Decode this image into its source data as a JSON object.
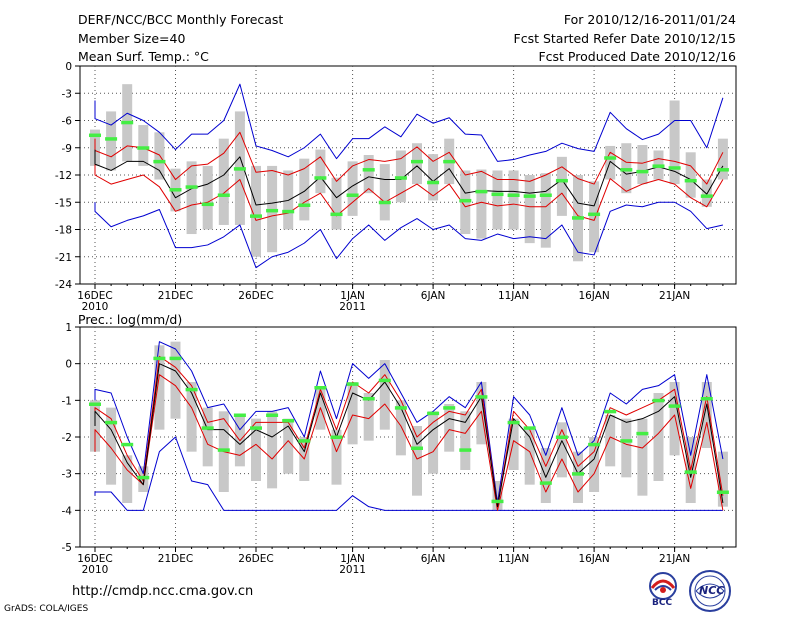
{
  "header": {
    "title": "DERF/NCC/BCC Monthly Forecast",
    "member_size": "Member Size=40",
    "variable": "Mean Surf. Temp.: °C",
    "period": "For 2010/12/16-2011/01/24",
    "started": "Fcst Started Refer Date 2010/12/15",
    "produced": "Fcst Produced Date 2010/12/16"
  },
  "footer": {
    "url": "http://cmdp.ncc.cma.gov.cn",
    "grads": "GrADS: COLA/IGES",
    "logo1_text": "BCC",
    "logo2_text": "NCC"
  },
  "colors": {
    "box": "#c8c8c8",
    "median": "#000000",
    "spread": "#e00000",
    "extreme": "#0000d0",
    "member": "#44ee44",
    "grid": "#555555"
  },
  "chart_data": [
    {
      "type": "line",
      "title": "Mean Surf. Temp.: °C",
      "xlabel": "",
      "ylabel": "",
      "ylim": [
        -24,
        0
      ],
      "yticks": [
        0,
        -3,
        -6,
        -9,
        -12,
        -15,
        -18,
        -21,
        -24
      ],
      "x_day_range": [
        0,
        39
      ],
      "grid": true,
      "xticks": [
        {
          "day": 0,
          "label": "16DEC",
          "sub": "2010"
        },
        {
          "day": 5,
          "label": "21DEC",
          "sub": ""
        },
        {
          "day": 10,
          "label": "26DEC",
          "sub": ""
        },
        {
          "day": 16,
          "label": "1JAN",
          "sub": "2011"
        },
        {
          "day": 21,
          "label": "6JAN",
          "sub": ""
        },
        {
          "day": 26,
          "label": "11JAN",
          "sub": ""
        },
        {
          "day": 31,
          "label": "16JAN",
          "sub": ""
        },
        {
          "day": 36,
          "label": "21JAN",
          "sub": ""
        }
      ],
      "series": [
        {
          "name": "max",
          "values": [
            -3.8,
            -5.8,
            -6.5,
            -5.2,
            -6.0,
            -7.3,
            -9.2,
            -7.5,
            -7.5,
            -6.0,
            -2.0,
            -8.8,
            -9.3,
            -10.0,
            -9.0,
            -7.5,
            -10.2,
            -8.0,
            -8.0,
            -6.7,
            -7.8,
            -5.3,
            -6.3,
            -5.7,
            -7.5,
            -7.6,
            -10.5,
            -10.3,
            -9.8,
            -9.4,
            -8.5,
            -9.1,
            -9.4,
            -5.1,
            -6.9,
            -8.1,
            -7.5,
            -6.0,
            -6.0,
            -9.0,
            -3.5
          ]
        },
        {
          "name": "upper",
          "values": [
            -8.0,
            -9.3,
            -10.0,
            -8.8,
            -9.0,
            -9.8,
            -12.5,
            -11.0,
            -10.8,
            -9.6,
            -7.3,
            -11.7,
            -11.5,
            -12.0,
            -11.3,
            -10.0,
            -12.7,
            -11.0,
            -10.3,
            -10.5,
            -10.2,
            -8.9,
            -10.5,
            -9.5,
            -12.0,
            -11.6,
            -12.5,
            -12.5,
            -12.7,
            -12.0,
            -11.1,
            -12.4,
            -13.0,
            -9.5,
            -10.6,
            -10.7,
            -10.2,
            -10.5,
            -11.0,
            -13.0,
            -9.5
          ]
        },
        {
          "name": "median",
          "values": [
            -9.2,
            -10.8,
            -11.5,
            -10.5,
            -10.5,
            -11.5,
            -14.5,
            -13.5,
            -13.0,
            -12.0,
            -10.0,
            -15.3,
            -15.1,
            -14.8,
            -13.8,
            -12.2,
            -14.5,
            -13.2,
            -12.2,
            -12.5,
            -12.5,
            -11.0,
            -12.7,
            -11.3,
            -14.0,
            -13.7,
            -13.8,
            -13.8,
            -14.0,
            -13.8,
            -12.5,
            -15.1,
            -15.4,
            -10.5,
            -11.9,
            -11.6,
            -11.1,
            -11.6,
            -12.5,
            -14.1,
            -11.0
          ]
        },
        {
          "name": "lower",
          "values": [
            -10.2,
            -12.0,
            -13.0,
            -12.5,
            -12.0,
            -13.3,
            -16.0,
            -15.3,
            -15.0,
            -14.0,
            -12.5,
            -17.0,
            -16.5,
            -16.2,
            -15.0,
            -14.0,
            -16.5,
            -15.0,
            -13.5,
            -15.0,
            -14.0,
            -13.0,
            -14.3,
            -13.0,
            -15.5,
            -15.0,
            -15.4,
            -15.2,
            -15.5,
            -15.5,
            -14.0,
            -16.5,
            -17.0,
            -12.4,
            -13.8,
            -13.0,
            -12.5,
            -13.0,
            -14.5,
            -15.5,
            -12.5
          ]
        },
        {
          "name": "min",
          "values": [
            -15.0,
            -16.0,
            -17.7,
            -17.0,
            -16.5,
            -15.8,
            -20.0,
            -20.0,
            -19.7,
            -18.8,
            -17.5,
            -22.2,
            -21.0,
            -20.5,
            -19.5,
            -18.0,
            -21.2,
            -19.0,
            -17.5,
            -19.2,
            -17.8,
            -16.8,
            -18.0,
            -17.5,
            -19.0,
            -19.2,
            -18.5,
            -19.0,
            -18.8,
            -19.0,
            -17.5,
            -20.5,
            -20.8,
            -16.0,
            -15.3,
            -15.5,
            -15.0,
            -15.0,
            -16.0,
            -17.9,
            -17.5
          ]
        },
        {
          "name": "members",
          "values": [
            -8.0,
            -7.6,
            -8.0,
            -6.2,
            -9.0,
            -10.5,
            -13.6,
            -13.3,
            -15.2,
            -14.2,
            -11.3,
            -16.5,
            -15.9,
            -16.0,
            -15.3,
            -12.3,
            -16.3,
            -14.2,
            -11.4,
            -15.0,
            -12.3,
            -10.5,
            -12.8,
            -10.5,
            -14.8,
            -13.8,
            -14.1,
            -14.2,
            -14.3,
            -14.2,
            -12.6,
            -16.7,
            -16.3,
            -10.1,
            -11.4,
            -11.6,
            -11.0,
            -11.2,
            -12.6,
            -14.3,
            -11.4
          ]
        },
        {
          "name": "box_top",
          "values": [
            -6.5,
            -7.0,
            -5.0,
            -2.0,
            -6.5,
            -7.3,
            -11.3,
            -10.5,
            -11.0,
            -8.0,
            -5.0,
            -11.0,
            -11.0,
            -11.5,
            -10.2,
            -9.2,
            -12.3,
            -10.5,
            -9.8,
            -10.8,
            -9.3,
            -8.5,
            -9.7,
            -8.0,
            -11.5,
            -11.4,
            -11.5,
            -11.5,
            -12.0,
            -11.8,
            -10.0,
            -12.0,
            -12.7,
            -8.8,
            -8.5,
            -8.7,
            -9.3,
            -3.8,
            -9.5,
            -12.5,
            -8.0
          ]
        },
        {
          "name": "box_bottom",
          "values": [
            -9.5,
            -11.0,
            -11.5,
            -10.5,
            -11.0,
            -12.5,
            -16.0,
            -18.5,
            -18.0,
            -17.5,
            -17.5,
            -21.0,
            -20.5,
            -18.0,
            -17.0,
            -14.0,
            -18.0,
            -16.5,
            -14.0,
            -17.0,
            -15.0,
            -13.0,
            -14.8,
            -13.0,
            -18.5,
            -19.0,
            -18.0,
            -18.0,
            -19.5,
            -20.0,
            -16.5,
            -21.5,
            -20.5,
            -12.5,
            -14.0,
            -13.0,
            -12.5,
            -13.0,
            -14.5,
            -15.5,
            -12.5
          ]
        }
      ]
    },
    {
      "type": "line",
      "title": "Prec.: log(mm/d)",
      "xlabel": "",
      "ylabel": "",
      "ylim": [
        -5,
        1
      ],
      "yticks": [
        1,
        0,
        -1,
        -2,
        -3,
        -4,
        -5
      ],
      "x_day_range": [
        0,
        39
      ],
      "grid": true,
      "xticks": [
        {
          "day": 0,
          "label": "16DEC",
          "sub": "2010"
        },
        {
          "day": 5,
          "label": "21DEC",
          "sub": ""
        },
        {
          "day": 10,
          "label": "26DEC",
          "sub": ""
        },
        {
          "day": 16,
          "label": "1JAN",
          "sub": "2011"
        },
        {
          "day": 21,
          "label": "6JAN",
          "sub": ""
        },
        {
          "day": 26,
          "label": "11JAN",
          "sub": ""
        },
        {
          "day": 31,
          "label": "16JAN",
          "sub": ""
        },
        {
          "day": 36,
          "label": "21JAN",
          "sub": ""
        }
      ],
      "series": [
        {
          "name": "max",
          "values": [
            -1.0,
            -0.7,
            -0.8,
            -2.0,
            -3.0,
            0.6,
            0.4,
            -0.2,
            -1.2,
            -1.1,
            -1.8,
            -1.3,
            -1.3,
            -1.2,
            -2.0,
            -0.2,
            -1.5,
            0.0,
            -0.4,
            0.0,
            -0.8,
            -1.6,
            -1.3,
            -0.9,
            -1.2,
            -0.5,
            -3.8,
            -0.9,
            -1.4,
            -2.5,
            -1.2,
            -2.5,
            -2.1,
            -0.8,
            -1.1,
            -0.7,
            -0.6,
            -0.3,
            -2.5,
            -0.3,
            -2.6
          ]
        },
        {
          "name": "upper",
          "values": [
            -1.5,
            -1.2,
            -1.5,
            -2.5,
            -3.2,
            0.2,
            -0.1,
            -0.6,
            -1.6,
            -1.5,
            -2.1,
            -1.6,
            -1.6,
            -1.6,
            -2.3,
            -0.7,
            -1.8,
            -0.5,
            -0.8,
            -0.3,
            -1.0,
            -2.0,
            -1.6,
            -1.3,
            -1.4,
            -0.7,
            -3.9,
            -1.3,
            -1.8,
            -2.8,
            -1.8,
            -2.8,
            -2.4,
            -1.2,
            -1.4,
            -1.2,
            -1.0,
            -0.7,
            -2.9,
            -0.9,
            -3.6
          ]
        },
        {
          "name": "median",
          "values": [
            -1.7,
            -1.3,
            -1.8,
            -2.7,
            -3.3,
            0.0,
            -0.2,
            -0.8,
            -1.8,
            -1.8,
            -2.2,
            -1.8,
            -2.0,
            -1.7,
            -2.4,
            -0.8,
            -2.0,
            -0.8,
            -1.0,
            -0.5,
            -1.2,
            -2.2,
            -1.8,
            -1.5,
            -1.6,
            -0.9,
            -3.9,
            -1.5,
            -2.0,
            -3.1,
            -2.1,
            -3.0,
            -2.6,
            -1.4,
            -1.6,
            -1.5,
            -1.3,
            -0.9,
            -3.1,
            -1.1,
            -3.8
          ]
        },
        {
          "name": "lower",
          "values": [
            -2.4,
            -1.8,
            -2.3,
            -2.9,
            -3.3,
            -0.3,
            -0.6,
            -1.2,
            -2.2,
            -2.4,
            -2.5,
            -2.2,
            -2.6,
            -2.1,
            -2.6,
            -1.2,
            -2.4,
            -1.4,
            -1.5,
            -1.1,
            -1.7,
            -2.6,
            -2.4,
            -1.8,
            -1.9,
            -1.3,
            -4.0,
            -2.1,
            -2.4,
            -3.5,
            -2.6,
            -3.5,
            -3.0,
            -2.0,
            -2.2,
            -2.3,
            -1.9,
            -1.4,
            -3.4,
            -1.6,
            -4.0
          ]
        },
        {
          "name": "min",
          "values": [
            -3.6,
            -3.5,
            -3.5,
            -4.0,
            -4.0,
            -2.4,
            -2.0,
            -3.2,
            -3.3,
            -4.0,
            -4.0,
            -4.0,
            -4.0,
            -4.0,
            -4.0,
            -4.0,
            -4.0,
            -3.6,
            -3.9,
            -4.0,
            -4.0,
            -4.0,
            -4.0,
            -4.0,
            -4.0,
            -4.0,
            -4.0,
            -4.0,
            -4.0,
            -4.0,
            -4.0,
            -4.0,
            -4.0,
            -4.0,
            -4.0,
            -4.0,
            -4.0,
            -4.0,
            -4.0,
            -4.0,
            -4.0
          ]
        },
        {
          "name": "members",
          "values": [
            -1.5,
            -1.1,
            -1.6,
            -2.2,
            -3.1,
            0.15,
            0.15,
            -0.7,
            -1.75,
            -2.35,
            -1.4,
            -1.75,
            -1.4,
            -1.55,
            -2.1,
            -0.65,
            -2.0,
            -0.55,
            -0.95,
            -0.45,
            -1.2,
            -2.3,
            -1.35,
            -1.2,
            -2.35,
            -0.9,
            -3.75,
            -1.6,
            -1.75,
            -3.25,
            -2.0,
            -3.0,
            -2.2,
            -1.3,
            -2.1,
            -1.9,
            -1.0,
            -1.15,
            -2.95,
            -0.95,
            -3.5
          ]
        },
        {
          "name": "box_top",
          "values": [
            -1.1,
            -1.0,
            -1.2,
            -2.5,
            -2.8,
            0.5,
            0.6,
            -0.5,
            -1.2,
            -1.3,
            -1.4,
            -1.5,
            -1.3,
            -1.5,
            -2.0,
            -0.7,
            -1.8,
            -0.5,
            -0.8,
            0.1,
            -1.0,
            -1.7,
            -1.3,
            -1.1,
            -1.3,
            -0.5,
            -3.2,
            -1.5,
            -1.8,
            -2.3,
            -1.6,
            -2.4,
            -2.0,
            -1.4,
            -1.5,
            -1.5,
            -0.8,
            -0.5,
            -2.0,
            -0.5,
            -2.4
          ]
        },
        {
          "name": "box_bottom",
          "values": [
            -2.7,
            -2.4,
            -3.3,
            -3.8,
            -3.5,
            -1.8,
            -1.5,
            -2.4,
            -2.8,
            -3.5,
            -2.8,
            -3.2,
            -3.4,
            -3.0,
            -3.2,
            -1.8,
            -3.3,
            -2.2,
            -2.1,
            -1.8,
            -2.5,
            -3.6,
            -3.0,
            -2.4,
            -2.9,
            -2.2,
            -4.0,
            -2.9,
            -3.3,
            -3.8,
            -3.1,
            -3.8,
            -3.5,
            -2.8,
            -3.1,
            -3.6,
            -3.2,
            -2.5,
            -3.8,
            -2.3,
            -3.9
          ]
        }
      ]
    }
  ]
}
